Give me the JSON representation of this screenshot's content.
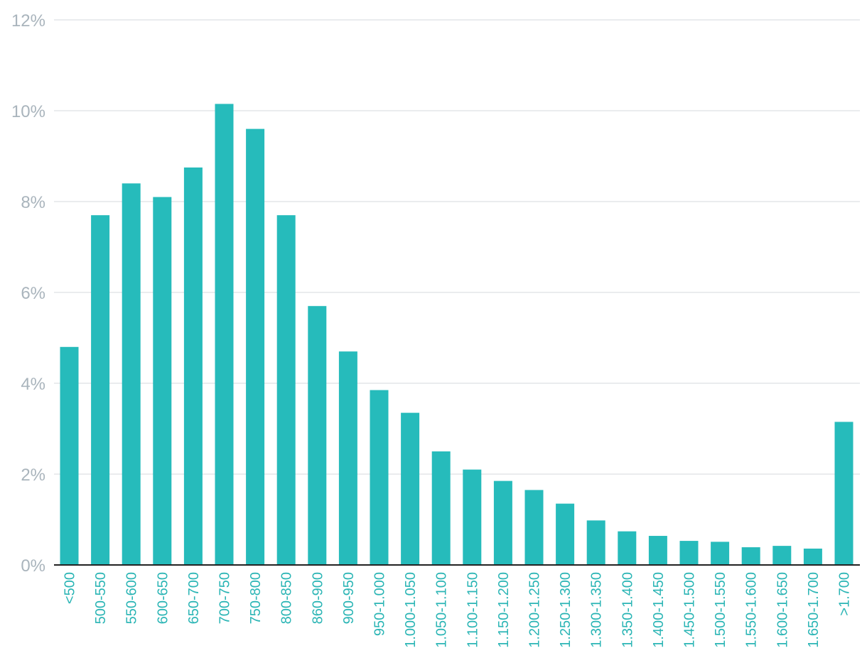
{
  "chart_data": {
    "type": "bar",
    "categories": [
      "<500",
      "500-550",
      "550-600",
      "600-650",
      "650-700",
      "700-750",
      "750-800",
      "800-850",
      "860-900",
      "900-950",
      "950-1.000",
      "1.000-1.050",
      "1.050-1.100",
      "1.100-1.150",
      "1.150-1.200",
      "1.200-1.250",
      "1.250-1.300",
      "1.300-1.350",
      "1.350-1.400",
      "1.400-1.450",
      "1.450-1.500",
      "1.500-1.550",
      "1.550-1.600",
      "1.600-1.650",
      "1.650-1.700",
      ">1.700"
    ],
    "values": [
      4.8,
      7.7,
      8.4,
      8.1,
      8.75,
      10.15,
      9.6,
      7.7,
      5.7,
      4.7,
      3.85,
      3.35,
      2.5,
      2.1,
      1.85,
      1.65,
      1.35,
      0.98,
      0.74,
      0.64,
      0.53,
      0.51,
      0.39,
      0.42,
      0.36,
      3.15
    ],
    "yticks": [
      "0%",
      "2%",
      "4%",
      "6%",
      "8%",
      "10%",
      "12%"
    ],
    "ylim": [
      0,
      12
    ],
    "grid": true,
    "colors": {
      "bar": "#26bbbb",
      "grid": "#e3e6e8",
      "ytick": "#a9b4bc",
      "xtick": "#2bb5b5",
      "baseline": "#222222"
    }
  }
}
